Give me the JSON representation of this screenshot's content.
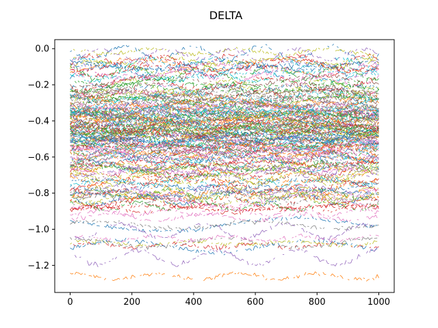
{
  "chart_data": {
    "type": "line",
    "title": "DELTA",
    "xlabel": "",
    "ylabel": "",
    "xlim": [
      -50,
      1050
    ],
    "ylim": [
      -1.35,
      0.05
    ],
    "x_ticks": [
      0,
      200,
      400,
      600,
      800,
      1000
    ],
    "x_tick_labels": [
      "0",
      "200",
      "400",
      "600",
      "800",
      "1000"
    ],
    "y_ticks": [
      0.0,
      -0.2,
      -0.4,
      -0.6,
      -0.8,
      -1.0,
      -1.2
    ],
    "y_tick_labels": [
      "0.0",
      "−0.2",
      "−0.4",
      "−0.6",
      "−0.8",
      "−1.0",
      "−1.2"
    ],
    "grid": false,
    "legend": "none",
    "x_range": [
      0,
      1000
    ],
    "n_points_per_series": 200,
    "n_series": 220,
    "series_palette": [
      "#1f77b4",
      "#ff7f0e",
      "#2ca02c",
      "#d62728",
      "#9467bd",
      "#8c564b",
      "#e377c2",
      "#7f7f7f",
      "#bcbd22",
      "#17becf"
    ],
    "density_profile": [
      {
        "y": -0.05,
        "weight": 3
      },
      {
        "y": -0.2,
        "weight": 7
      },
      {
        "y": -0.35,
        "weight": 10
      },
      {
        "y": -0.5,
        "weight": 11
      },
      {
        "y": -0.6,
        "weight": 8
      },
      {
        "y": -0.75,
        "weight": 5
      },
      {
        "y": -0.9,
        "weight": 3
      },
      {
        "y": -1.05,
        "weight": 1.5
      },
      {
        "y": -1.22,
        "weight": 0.7
      }
    ]
  }
}
